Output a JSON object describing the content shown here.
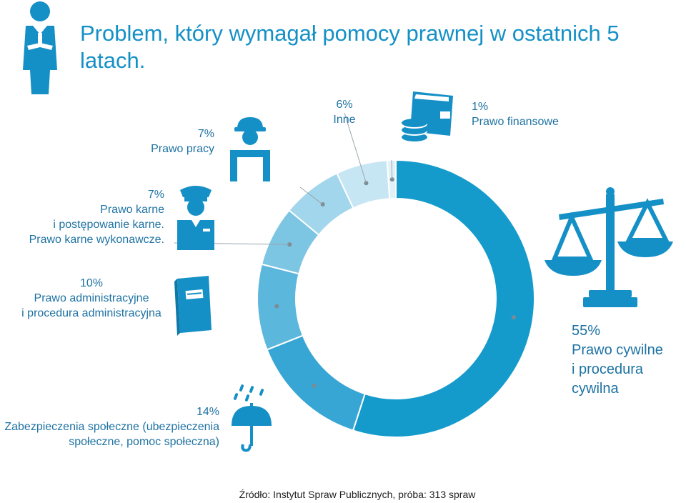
{
  "title": "Problem, który wymagał pomocy prawnej w ostatnich 5 latach.",
  "source": "Źródło: Instytut Spraw Publicznych, próba:  313 spraw",
  "colors": {
    "accent": "#1590c6",
    "slices": [
      "#159bcb",
      "#37a6d4",
      "#5cb7dc",
      "#7cc5e3",
      "#a2d6ec",
      "#c6e6f3",
      "#e1f1f8"
    ]
  },
  "chart_data": {
    "type": "pie",
    "title": "Problem, który wymagał pomocy prawnej w ostatnich 5 latach.",
    "slices": [
      {
        "pct": "55%",
        "value": 55,
        "lines": [
          "Prawo cywilne",
          "i procedura",
          "cywilna"
        ],
        "icon": "scales-icon"
      },
      {
        "pct": "14%",
        "value": 14,
        "lines": [
          "Zabezpieczenia społeczne (ubezpieczenia",
          "społeczne, pomoc społeczna)"
        ],
        "icon": "umbrella-rain-icon"
      },
      {
        "pct": "10%",
        "value": 10,
        "lines": [
          "Prawo administracyjne",
          "i procedura administracyjna"
        ],
        "icon": "document-book-icon"
      },
      {
        "pct": "7%",
        "value": 7,
        "lines": [
          "Prawo karne",
          "i postępowanie karne.",
          "Prawo karne wykonawcze."
        ],
        "icon": "police-officer-icon"
      },
      {
        "pct": "7%",
        "value": 7,
        "lines": [
          "Prawo pracy"
        ],
        "icon": "worker-icon"
      },
      {
        "pct": "6%",
        "value": 6,
        "lines": [
          "Inne"
        ],
        "icon": ""
      },
      {
        "pct": "1%",
        "value": 1,
        "lines": [
          "Prawo finansowe"
        ],
        "icon": "wallet-icon"
      }
    ]
  },
  "icons": {
    "header": "lawyer-icon"
  }
}
